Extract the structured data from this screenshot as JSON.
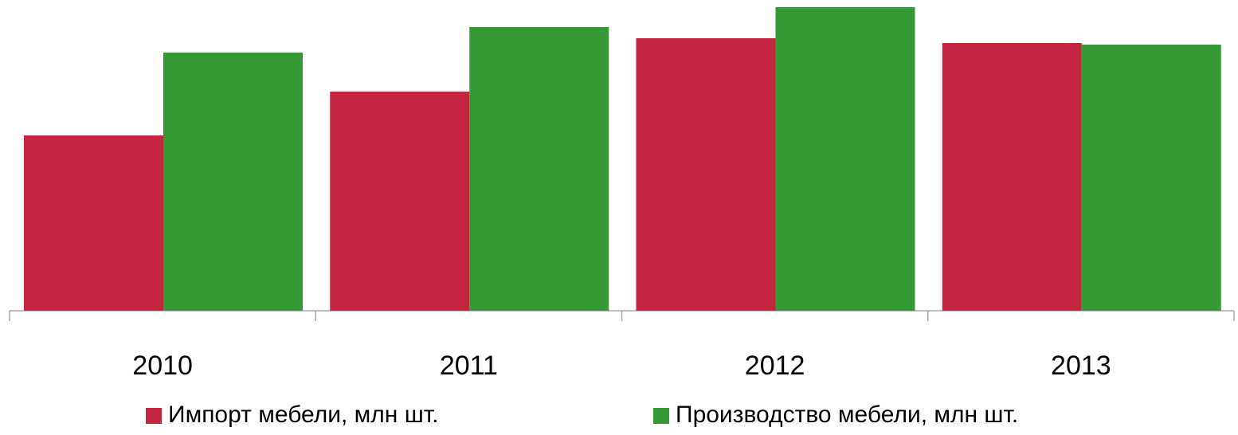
{
  "chart_data": {
    "type": "bar",
    "categories": [
      "2010",
      "2011",
      "2012",
      "2013"
    ],
    "series": [
      {
        "name": "Импорт мебели, млн шт.",
        "color": "#c42541",
        "values": [
          220,
          275,
          342,
          336
        ]
      },
      {
        "name": "Производство мебели, млн шт.",
        "color": "#359a35",
        "values": [
          324,
          356,
          381,
          334
        ]
      }
    ],
    "ylim": [
      0,
      381
    ]
  }
}
